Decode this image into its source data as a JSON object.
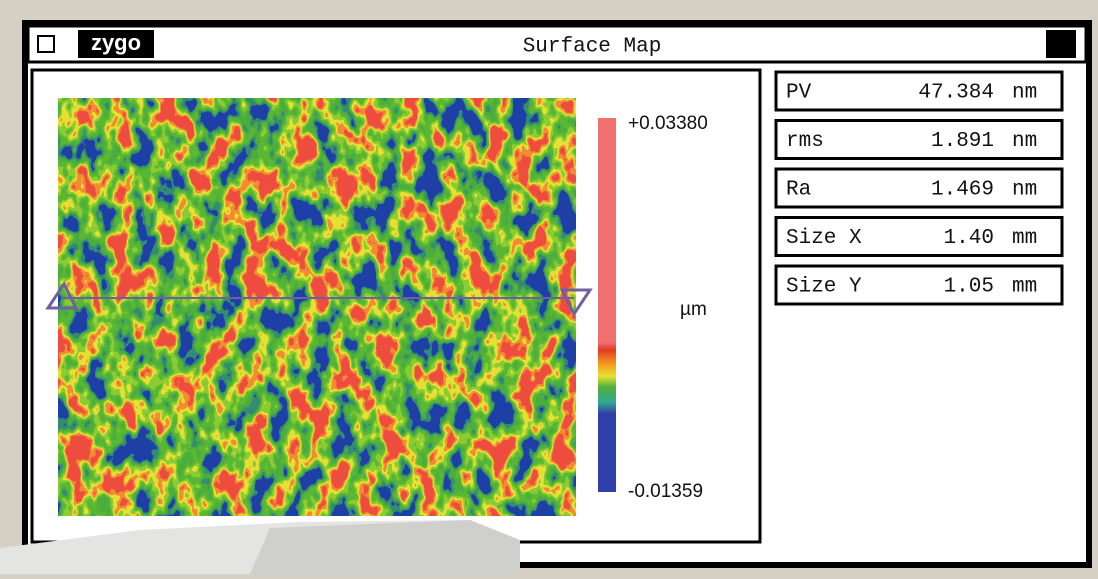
{
  "window": {
    "logo": "zygo",
    "title": "Surface Map"
  },
  "colorbar": {
    "max": "+0.03380",
    "unit": "µm",
    "min": "-0.01359"
  },
  "results": [
    {
      "label": "PV",
      "value": "47.384",
      "unit": "nm"
    },
    {
      "label": "rms",
      "value": "1.891",
      "unit": "nm"
    },
    {
      "label": "Ra",
      "value": "1.469",
      "unit": "nm"
    },
    {
      "label": "Size X",
      "value": "1.40",
      "unit": "mm"
    },
    {
      "label": "Size Y",
      "value": "1.05",
      "unit": "mm"
    }
  ]
}
